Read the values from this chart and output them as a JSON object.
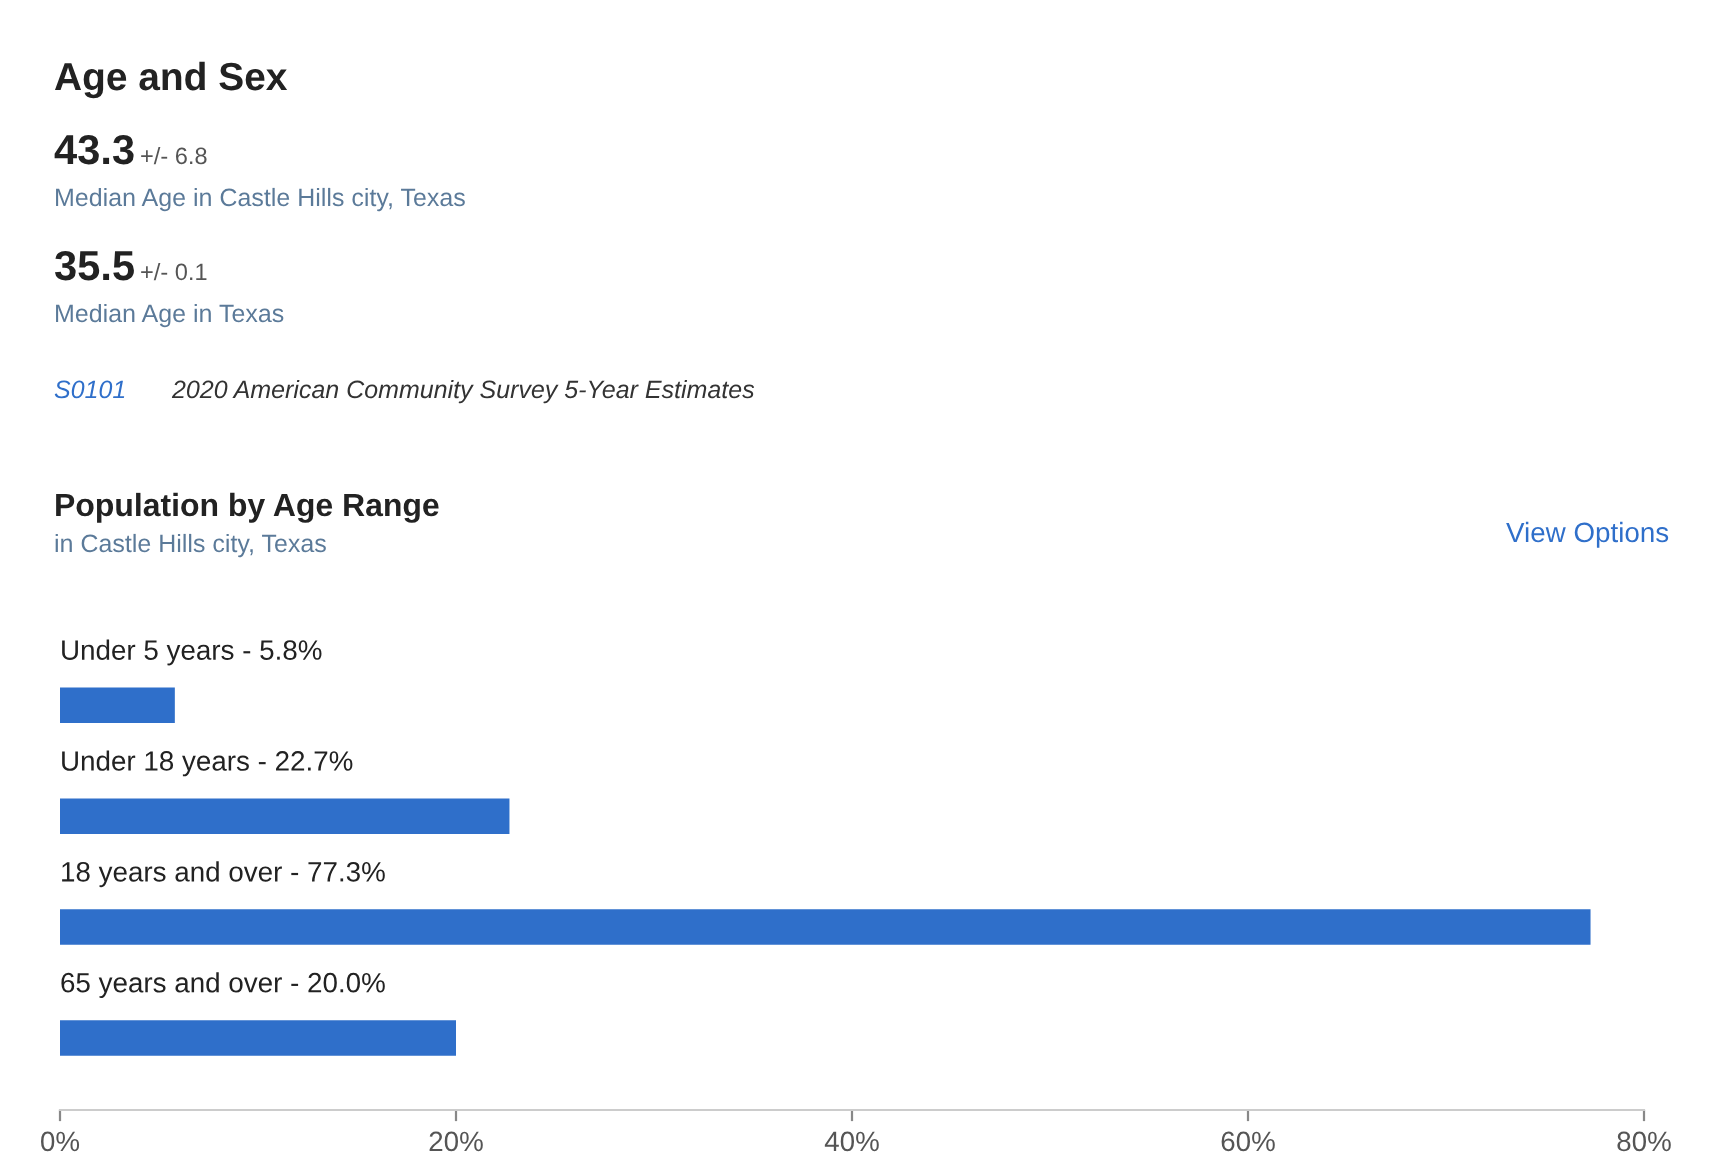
{
  "chart_data": {
    "type": "bar",
    "orientation": "horizontal",
    "title": "Population by Age Range",
    "subtitle": "in Castle Hills city, Texas",
    "annotations": [
      "Age and Sex",
      "43.3",
      "+/- 6.8",
      "Median Age in Castle Hills city, Texas",
      "35.5",
      "+/- 0.1",
      "Median Age in Texas",
      "S0101",
      "2020 American Community Survey 5-Year Estimates",
      "View Options"
    ],
    "categories": [
      "Under 5 years - 5.8%",
      "Under 18 years - 22.7%",
      "18 years and over - 77.3%",
      "65 years and over - 20.0%"
    ],
    "values": [
      5.8,
      22.7,
      77.3,
      20.0
    ],
    "color": "#2f6fca",
    "xlim": [
      0,
      80
    ],
    "xticks": [
      {
        "value": 0,
        "label": "0%"
      },
      {
        "value": 20,
        "label": "20%"
      },
      {
        "value": 40,
        "label": "40%"
      },
      {
        "value": 60,
        "label": "60%"
      },
      {
        "value": 80,
        "label": "80%"
      }
    ],
    "grid": false,
    "legend": false
  }
}
